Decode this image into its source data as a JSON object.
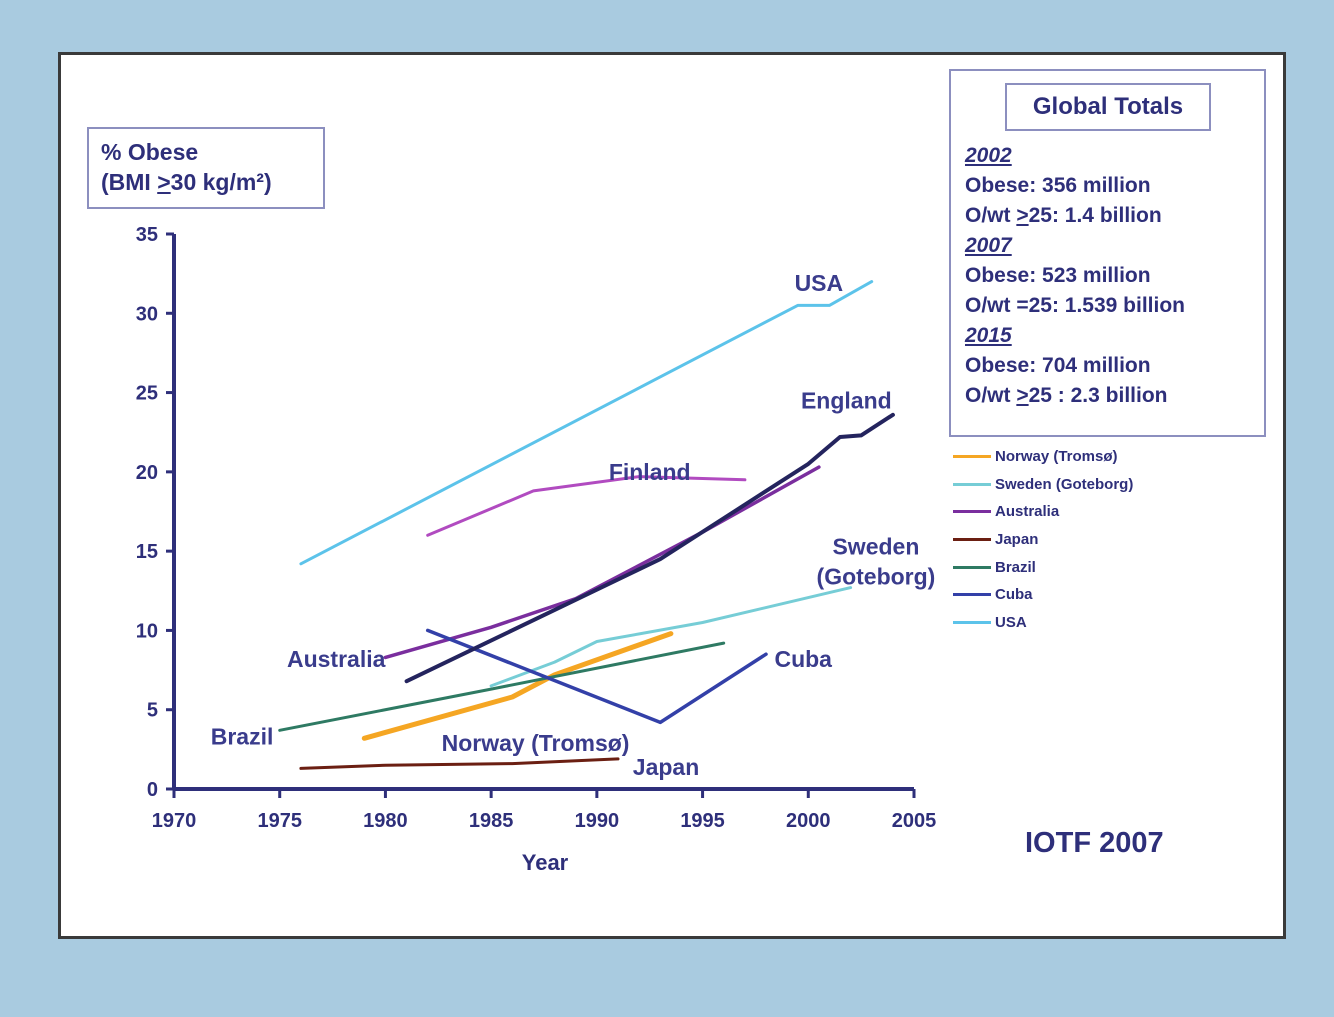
{
  "chart_data": {
    "type": "line",
    "ylabel_line1": "% Obese",
    "ylabel_line2_pre": "(BMI ",
    "ylabel_line2_ge": ">",
    "ylabel_line2_post": "30 kg/m²)",
    "xlabel": "Year",
    "xlim": [
      1970,
      2005
    ],
    "ylim": [
      0,
      35
    ],
    "xticks": [
      1970,
      1975,
      1980,
      1985,
      1990,
      1995,
      2000,
      2005
    ],
    "yticks": [
      0,
      5,
      10,
      15,
      20,
      25,
      30,
      35
    ],
    "series": [
      {
        "name": "Norway (Tromsø)",
        "color": "#f5a623",
        "width": 5,
        "x": [
          1979,
          1986,
          1988,
          1993.5
        ],
        "y": [
          3.2,
          5.8,
          7.2,
          9.8
        ]
      },
      {
        "name": "Sweden (Goteborg)",
        "color": "#76cdd6",
        "width": 3,
        "x": [
          1985,
          1988,
          1990,
          1995,
          2002
        ],
        "y": [
          6.5,
          8,
          9.3,
          10.5,
          12.7
        ]
      },
      {
        "name": "Australia",
        "color": "#7a2e9e",
        "width": 3.5,
        "x": [
          1980,
          1985,
          1989,
          1995,
          2000.5
        ],
        "y": [
          8.3,
          10.2,
          12,
          16.2,
          20.3
        ]
      },
      {
        "name": "Japan",
        "color": "#6b1f12",
        "width": 3,
        "x": [
          1976,
          1980,
          1986,
          1991
        ],
        "y": [
          1.3,
          1.5,
          1.6,
          1.9
        ]
      },
      {
        "name": "Brazil",
        "color": "#2e7a63",
        "width": 3,
        "x": [
          1975,
          1985,
          1996
        ],
        "y": [
          3.7,
          6.3,
          9.2
        ]
      },
      {
        "name": "Cuba",
        "color": "#3340a8",
        "width": 3.5,
        "x": [
          1982,
          1993,
          1998
        ],
        "y": [
          10,
          4.2,
          8.5
        ]
      },
      {
        "name": "USA",
        "color": "#5cc3ea",
        "width": 3,
        "x": [
          1976,
          1999.5,
          2001,
          2003
        ],
        "y": [
          14.2,
          30.5,
          30.5,
          32
        ]
      },
      {
        "name": "England",
        "color": "#24245e",
        "width": 4,
        "x": [
          1981,
          1993,
          2000,
          2001.5,
          2002.5,
          2004
        ],
        "y": [
          6.8,
          14.5,
          20.5,
          22.2,
          22.3,
          23.6
        ]
      },
      {
        "name": "Finland",
        "color": "#b14bc0",
        "width": 3,
        "x": [
          1982,
          1987,
          1992,
          1997
        ],
        "y": [
          16,
          18.8,
          19.7,
          19.5
        ]
      }
    ],
    "annotations": [
      {
        "text": "USA",
        "x": 2000.5,
        "y": 31.9,
        "anchor": "middle"
      },
      {
        "text": "England",
        "x": 2001.8,
        "y": 24.5,
        "anchor": "middle"
      },
      {
        "text": "Finland",
        "x": 1992.5,
        "y": 20,
        "anchor": "middle"
      },
      {
        "text": "Sweden",
        "x": 2003.2,
        "y": 15.3,
        "anchor": "middle"
      },
      {
        "text": "(Goteborg)",
        "x": 2003.2,
        "y": 13.4,
        "anchor": "middle"
      },
      {
        "text": "Australia",
        "x": 1980,
        "y": 8.2,
        "anchor": "end"
      },
      {
        "text": "Cuba",
        "x": 1998.4,
        "y": 8.2,
        "anchor": "start"
      },
      {
        "text": "Brazil",
        "x": 1974.7,
        "y": 3.3,
        "anchor": "end"
      },
      {
        "text": "Norway (Tromsø)",
        "x": 1987.1,
        "y": 2.9,
        "anchor": "middle"
      },
      {
        "text": "Japan",
        "x": 1991.7,
        "y": 1.4,
        "anchor": "start"
      }
    ]
  },
  "totals": {
    "title": "Global Totals",
    "groups": [
      {
        "year": "2002",
        "line1": "Obese: 356 million",
        "line2_pre": "O/wt ",
        "line2_ge": ">",
        "line2_post": "25: 1.4 billion"
      },
      {
        "year": "2007",
        "line1": "Obese: 523 million",
        "line2_pre": "O/wt =25:  1.539 billion",
        "line2_ge": "",
        "line2_post": ""
      },
      {
        "year": "2015",
        "line1": "Obese: 704 million",
        "line2_pre": "O/wt ",
        "line2_ge": ">",
        "line2_post": "25 : 2.3 billion"
      }
    ]
  },
  "legend_order": [
    "Norway (Tromsø)",
    "Sweden (Goteborg)",
    "Australia",
    "Japan",
    "Brazil",
    "Cuba",
    "USA"
  ],
  "credit": "IOTF 2007"
}
